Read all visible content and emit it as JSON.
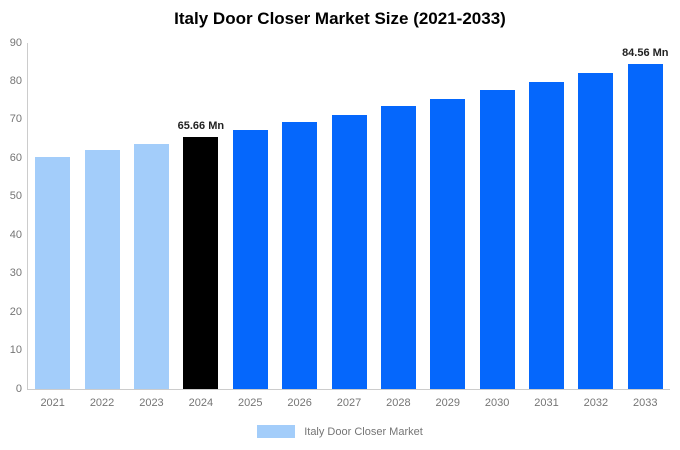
{
  "title": "Italy Door Closer Market Size (2021-2033)",
  "legend": {
    "label": "Italy Door Closer Market",
    "swatch_color": "#a3cdfa"
  },
  "colors": {
    "light_blue": "#a3cdfa",
    "bright_blue": "#0567fc",
    "highlight_black": "#000000",
    "axis_line": "#cccccc",
    "tick_text": "#757575",
    "annotation_text": "#222222",
    "title_text": "#000000",
    "background": "#ffffff"
  },
  "chart_data": {
    "type": "bar",
    "title": "Italy Door Closer Market Size (2021-2033)",
    "categories": [
      "2021",
      "2022",
      "2023",
      "2024",
      "2025",
      "2026",
      "2027",
      "2028",
      "2029",
      "2030",
      "2031",
      "2032",
      "2033"
    ],
    "values": [
      60.4,
      62.1,
      63.8,
      65.66,
      67.5,
      69.4,
      71.4,
      73.5,
      75.5,
      77.7,
      79.9,
      82.2,
      84.56
    ],
    "bar_colors": [
      "#a3cdfa",
      "#a3cdfa",
      "#a3cdfa",
      "#000000",
      "#0567fc",
      "#0567fc",
      "#0567fc",
      "#0567fc",
      "#0567fc",
      "#0567fc",
      "#0567fc",
      "#0567fc",
      "#0567fc"
    ],
    "annotations": [
      {
        "category": "2024",
        "text": "65.66 Mn"
      },
      {
        "category": "2033",
        "text": "84.56 Mn"
      }
    ],
    "xlabel": "",
    "ylabel": "",
    "ylim": [
      0,
      90
    ],
    "yticks": [
      0,
      10,
      20,
      30,
      40,
      50,
      60,
      70,
      80,
      90
    ],
    "grid": false,
    "legend_position": "bottom",
    "legend_entries": [
      "Italy Door Closer Market"
    ]
  }
}
